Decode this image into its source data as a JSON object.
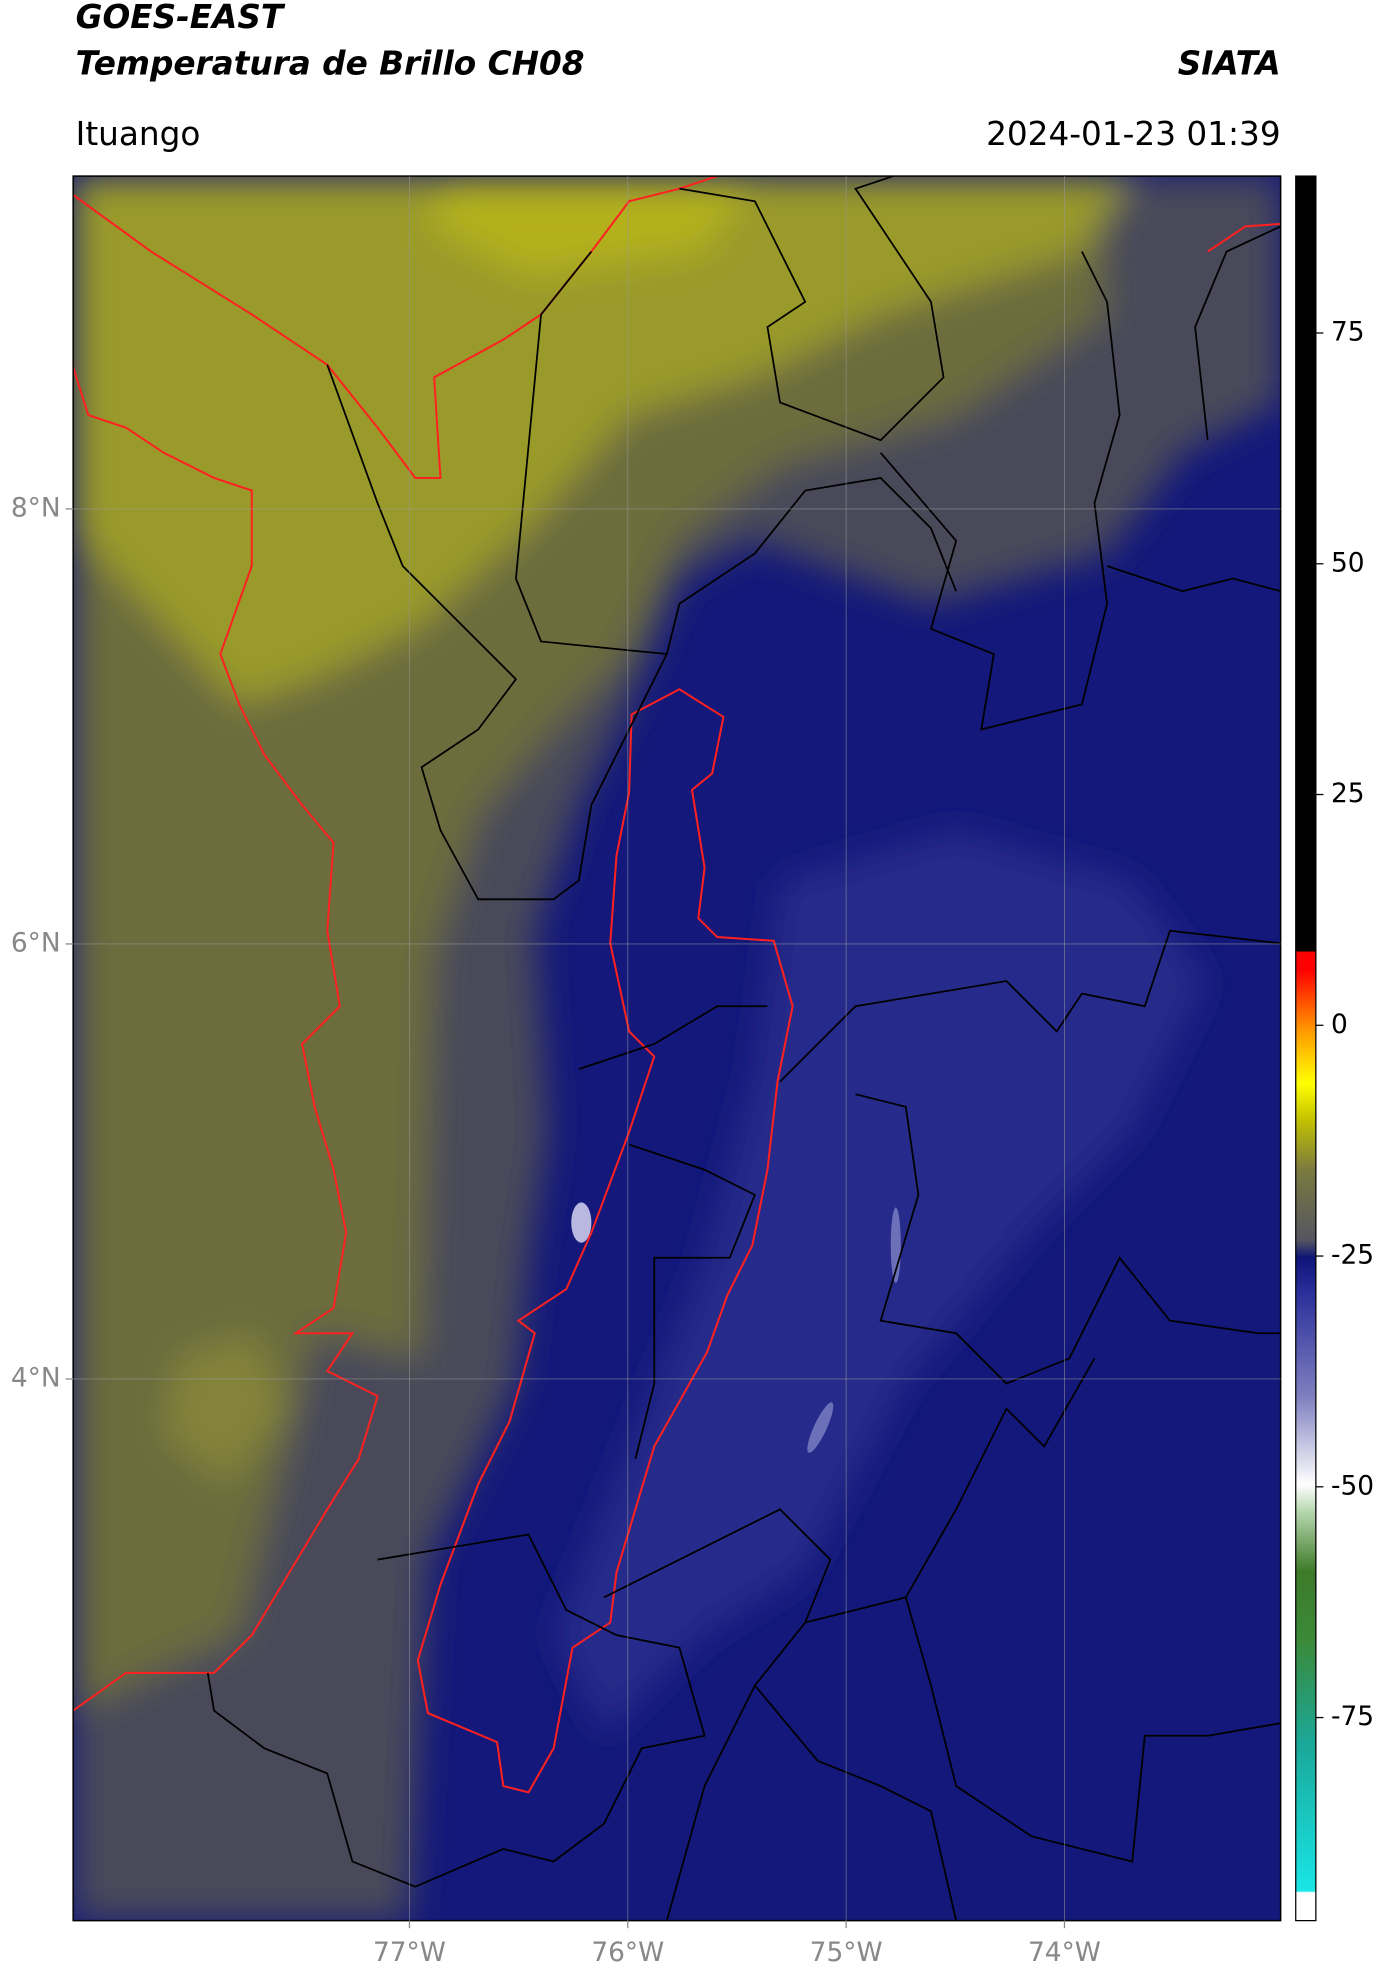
{
  "chart_data": {
    "type": "map",
    "title": "GOES-EAST",
    "subtitle": "Temperatura de Brillo CH08",
    "source": "SIATA",
    "location": "Ituango",
    "datetime": "2024-01-23 01:39",
    "xlim": [
      -78.54,
      -73.01
    ],
    "ylim": [
      1.51,
      9.53
    ],
    "xticks": [
      {
        "value": -77,
        "label": "77°W"
      },
      {
        "value": -76,
        "label": "76°W"
      },
      {
        "value": -75,
        "label": "75°W"
      },
      {
        "value": -74,
        "label": "74°W"
      }
    ],
    "yticks": [
      {
        "value": 8,
        "label": "8°N"
      },
      {
        "value": 6,
        "label": "6°N"
      },
      {
        "value": 4,
        "label": "4°N"
      }
    ],
    "grid": true,
    "clim": [
      -97,
      92
    ],
    "cticks": [
      75,
      50,
      25,
      0,
      -25,
      -50,
      -75
    ]
  }
}
